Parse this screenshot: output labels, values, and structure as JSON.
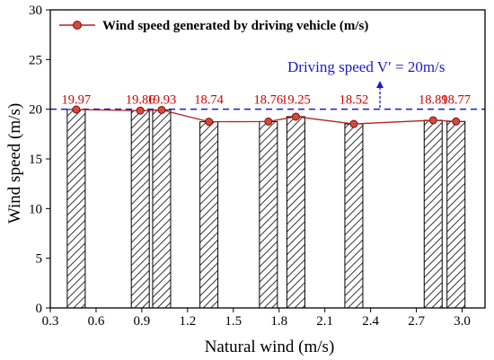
{
  "chart_data": {
    "type": "bar",
    "xlabel": "Natural wind (m/s)",
    "ylabel": "Wind speed (m/s)",
    "xlim": [
      0.3,
      3.15
    ],
    "ylim": [
      0,
      30
    ],
    "x_ticks": [
      "0.3",
      "0.6",
      "0.9",
      "1.2",
      "1.5",
      "1.8",
      "2.1",
      "2.4",
      "2.7",
      "3.0"
    ],
    "y_ticks": [
      "0",
      "5",
      "10",
      "15",
      "20",
      "25",
      "30"
    ],
    "x": [
      0.47,
      0.89,
      1.03,
      1.34,
      1.73,
      1.91,
      2.29,
      2.81,
      2.96
    ],
    "values": [
      19.97,
      19.86,
      19.93,
      18.74,
      18.76,
      19.25,
      18.52,
      18.89,
      18.77
    ],
    "data_labels": [
      "19.97",
      "19.86",
      "19.93",
      "18.74",
      "18.76",
      "19.25",
      "18.52",
      "18.89",
      "18.77"
    ],
    "bar_fill": "hatched",
    "series": [
      {
        "name": "Wind speed generated by driving vehicle (m/s)",
        "type": "line",
        "color": "#b22222",
        "values": [
          19.97,
          19.86,
          19.93,
          18.74,
          18.76,
          19.25,
          18.52,
          18.89,
          18.77
        ]
      }
    ],
    "legend": {
      "position": "top",
      "label": "Wind speed generated by driving vehicle (m/s)"
    },
    "reference_line": {
      "y": 20,
      "label": "Driving speed V′ = 20m/s",
      "color": "#1a1acc",
      "style": "dashed"
    },
    "colors": {
      "line": "#b22222",
      "labels": "#d00000",
      "reference": "#1a1acc",
      "bars": "#333333"
    }
  }
}
